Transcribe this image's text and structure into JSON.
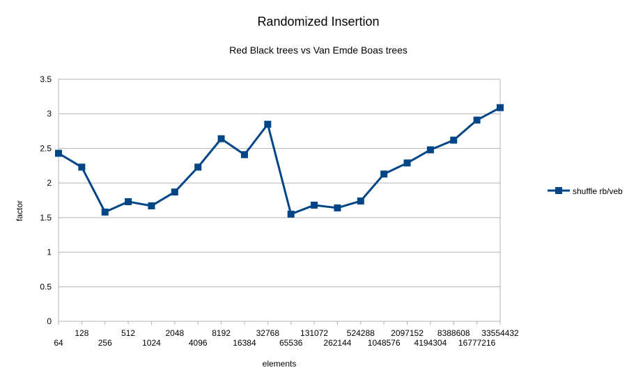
{
  "chart_data": {
    "type": "line",
    "title": "Randomized Insertion",
    "subtitle": "Red Black trees vs Van Emde Boas trees",
    "xlabel": "elements",
    "ylabel": "factor",
    "ylim": [
      0,
      3.5
    ],
    "yticks": [
      "0",
      "0.5",
      "1",
      "1.5",
      "2",
      "2.5",
      "3",
      "3.5"
    ],
    "grid": true,
    "legend_position": "right",
    "categories": [
      "64",
      "128",
      "256",
      "512",
      "1024",
      "2048",
      "4096",
      "8192",
      "16384",
      "32768",
      "65536",
      "131072",
      "262144",
      "524288",
      "1048576",
      "2097152",
      "4194304",
      "8388608",
      "16777216",
      "33554432"
    ],
    "series": [
      {
        "name": "shuffle rb/veb",
        "color": "#004586",
        "marker": "square",
        "values": [
          2.43,
          2.23,
          1.58,
          1.73,
          1.67,
          1.87,
          2.23,
          2.64,
          2.41,
          2.85,
          1.55,
          1.68,
          1.64,
          1.74,
          2.13,
          2.29,
          2.48,
          2.62,
          2.91,
          3.09
        ]
      }
    ]
  }
}
